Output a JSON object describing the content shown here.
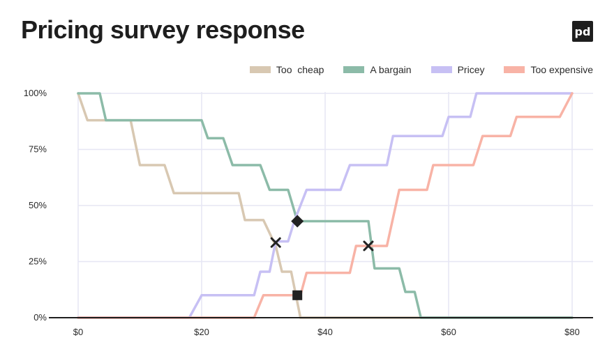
{
  "title": "Pricing survey response",
  "logo_text": "pd",
  "chart_data": {
    "type": "line",
    "title": "Pricing survey response",
    "xlabel": "",
    "ylabel": "",
    "xlim": [
      0,
      80
    ],
    "ylim": [
      0,
      100
    ],
    "x_ticks": [
      0,
      20,
      40,
      60,
      80
    ],
    "x_tick_labels": [
      "$0",
      "$20",
      "$40",
      "$60",
      "$80"
    ],
    "y_ticks": [
      0,
      25,
      50,
      75,
      100
    ],
    "y_tick_labels": [
      "0%",
      "25%",
      "50%",
      "75%",
      "100%"
    ],
    "grid": true,
    "legend_position": "top-right",
    "series": [
      {
        "name": "Too  cheap",
        "color": "#d8c8b2",
        "points": [
          [
            0,
            100
          ],
          [
            1.5,
            88
          ],
          [
            4,
            88
          ],
          [
            8.5,
            88
          ],
          [
            10,
            68
          ],
          [
            14,
            68
          ],
          [
            15.5,
            55.5
          ],
          [
            26,
            55.5
          ],
          [
            27,
            43.5
          ],
          [
            30,
            43.5
          ],
          [
            32,
            32
          ],
          [
            33,
            20.5
          ],
          [
            34.5,
            20.5
          ],
          [
            36,
            0
          ],
          [
            80,
            0
          ]
        ]
      },
      {
        "name": "A bargain",
        "color": "#8cbba8",
        "points": [
          [
            0,
            100
          ],
          [
            3.5,
            100
          ],
          [
            4.5,
            88
          ],
          [
            20,
            88
          ],
          [
            21,
            80
          ],
          [
            23.5,
            80
          ],
          [
            25,
            68
          ],
          [
            29.5,
            68
          ],
          [
            31,
            57
          ],
          [
            34,
            57
          ],
          [
            35.5,
            43
          ],
          [
            47,
            43
          ],
          [
            48,
            22
          ],
          [
            52,
            22
          ],
          [
            53,
            11.5
          ],
          [
            54.5,
            11.5
          ],
          [
            55.5,
            0
          ],
          [
            80,
            0
          ]
        ]
      },
      {
        "name": "Pricey",
        "color": "#c7c0f4",
        "points": [
          [
            0,
            0
          ],
          [
            18,
            0
          ],
          [
            20,
            10
          ],
          [
            28.5,
            10
          ],
          [
            29.5,
            20.5
          ],
          [
            31,
            20.5
          ],
          [
            32,
            34
          ],
          [
            34,
            34
          ],
          [
            35,
            43
          ],
          [
            37,
            57
          ],
          [
            42.5,
            57
          ],
          [
            44,
            68
          ],
          [
            50,
            68
          ],
          [
            51,
            81
          ],
          [
            59,
            81
          ],
          [
            60,
            89.5
          ],
          [
            63.5,
            89.5
          ],
          [
            64.5,
            100
          ],
          [
            80,
            100
          ]
        ]
      },
      {
        "name": "Too expensive",
        "color": "#f8b3a6",
        "points": [
          [
            0,
            0
          ],
          [
            28.5,
            0
          ],
          [
            30,
            10
          ],
          [
            36,
            10
          ],
          [
            37,
            20
          ],
          [
            44,
            20
          ],
          [
            45,
            32
          ],
          [
            50,
            32
          ],
          [
            52,
            57
          ],
          [
            56.5,
            57
          ],
          [
            57.5,
            68
          ],
          [
            64,
            68
          ],
          [
            65.5,
            81
          ],
          [
            70,
            81
          ],
          [
            71,
            89.5
          ],
          [
            78,
            89.5
          ],
          [
            80,
            100
          ]
        ]
      }
    ],
    "markers": [
      {
        "shape": "x",
        "x": 32,
        "y": 33.5,
        "color": "#222222"
      },
      {
        "shape": "diamond",
        "x": 35.5,
        "y": 43,
        "color": "#222222"
      },
      {
        "shape": "x",
        "x": 47,
        "y": 32,
        "color": "#222222"
      },
      {
        "shape": "square",
        "x": 35.5,
        "y": 10,
        "color": "#222222"
      }
    ]
  }
}
